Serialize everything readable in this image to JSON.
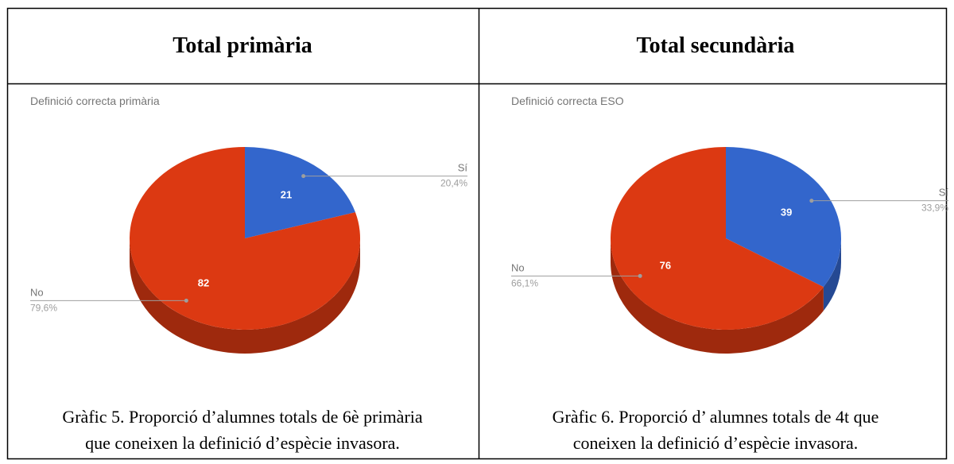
{
  "table": {
    "headers": [
      "Total primària",
      "Total secundària"
    ],
    "captions": [
      [
        "Gràfic 5. Proporció d’alumnes totals de 6è primària",
        "que coneixen la definició d’espècie invasora."
      ],
      [
        "Gràfic 6. Proporció d’ alumnes totals de 4t que",
        "coneixen la definició d’espècie invasora."
      ]
    ]
  },
  "chart_data": [
    {
      "type": "pie",
      "title": "Definició correcta primària",
      "categories": [
        "Sí",
        "No"
      ],
      "values": [
        21,
        82
      ],
      "percent_labels": [
        "20,4%",
        "79,6%"
      ],
      "colors": [
        "#3366cc",
        "#dc3912"
      ]
    },
    {
      "type": "pie",
      "title": "Definició correcta ESO",
      "categories": [
        "Sí",
        "No"
      ],
      "values": [
        39,
        76
      ],
      "percent_labels": [
        "33,9%",
        "66,1%"
      ],
      "colors": [
        "#3366cc",
        "#dc3912"
      ]
    }
  ]
}
